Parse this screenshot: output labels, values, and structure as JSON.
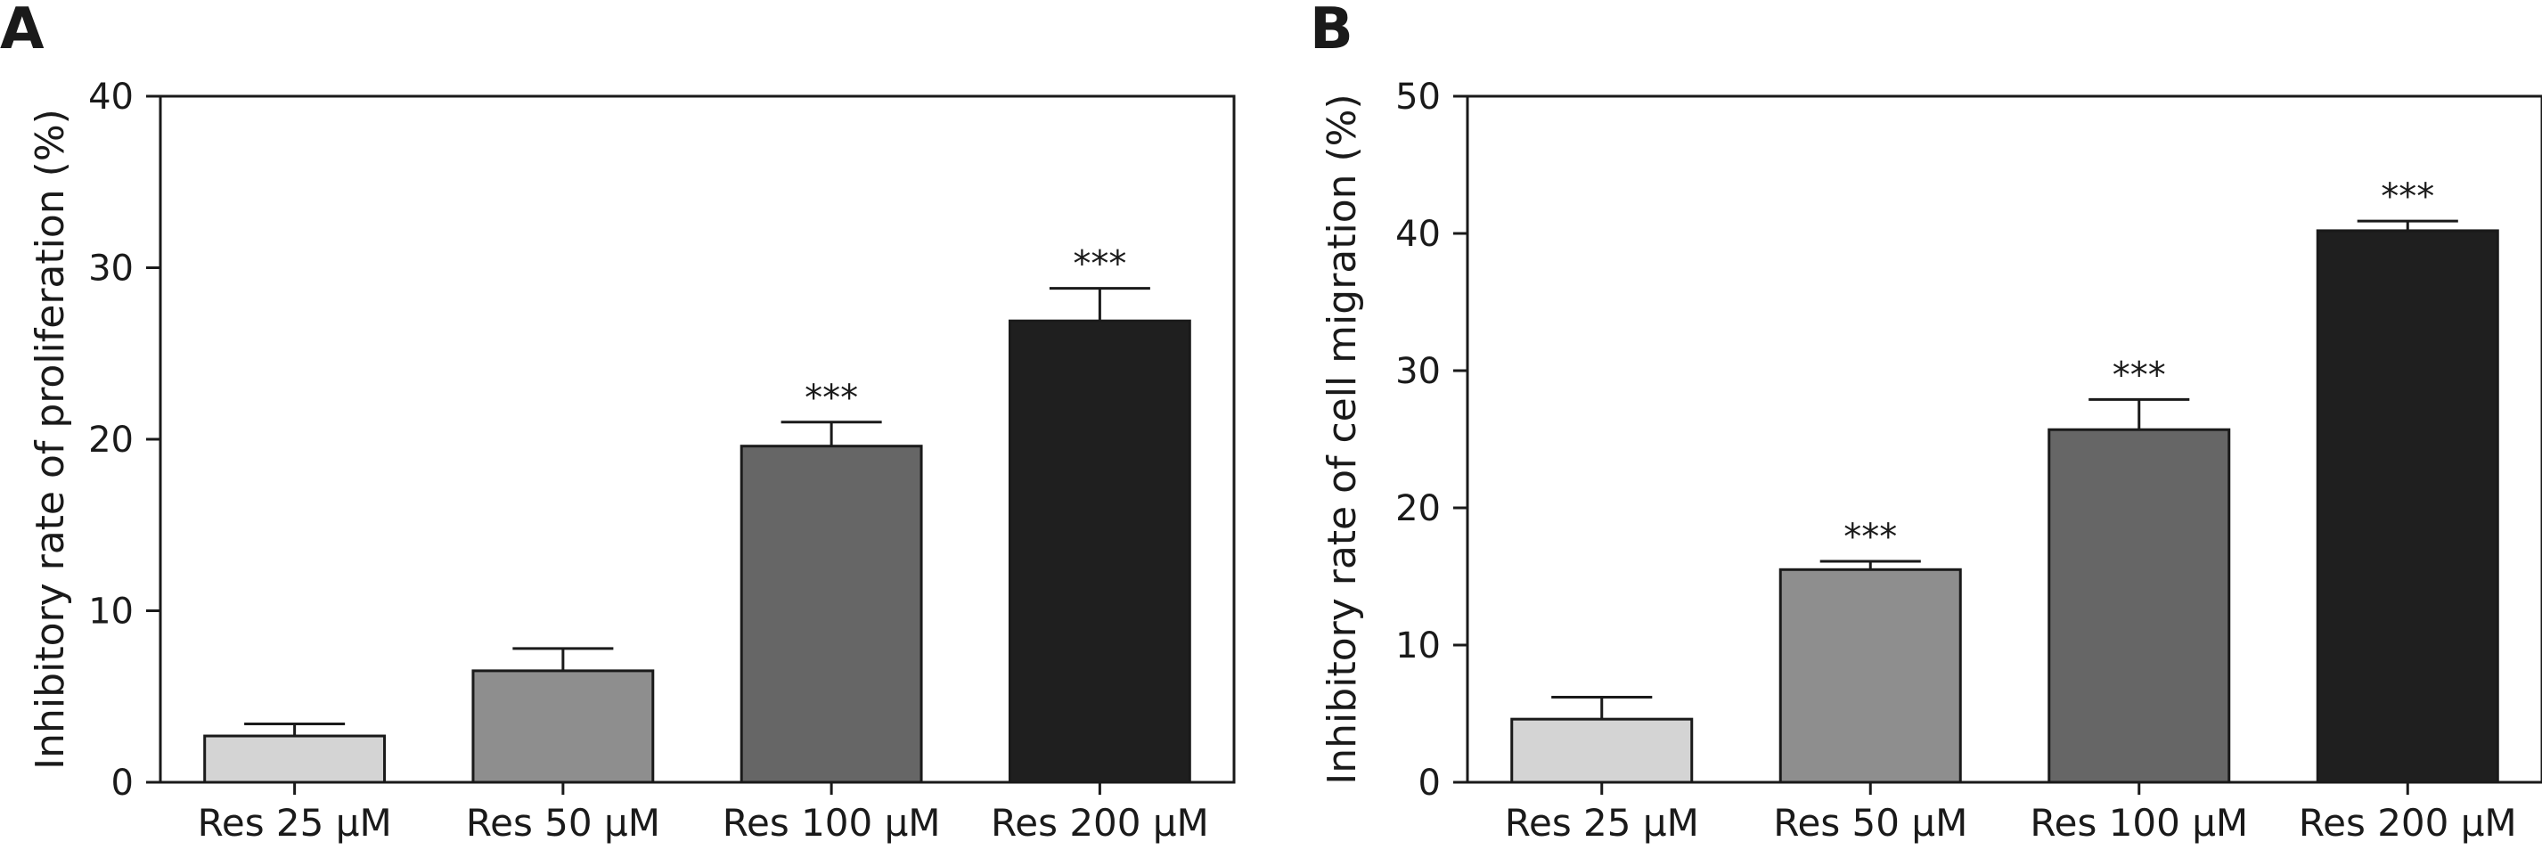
{
  "chart_data": [
    {
      "type": "bar",
      "panel_label": "A",
      "categories": [
        "Res 25 μM",
        "Res 50 μM",
        "Res 100 μM",
        "Res 200 μM"
      ],
      "values": [
        2.7,
        6.5,
        19.6,
        26.9
      ],
      "errors": [
        0.7,
        1.3,
        1.4,
        1.9
      ],
      "significance": [
        "",
        "",
        "***",
        "***"
      ],
      "colors": [
        "#d4d4d4",
        "#8e8e8e",
        "#666666",
        "#1f1f1f"
      ],
      "title": "",
      "xlabel": "",
      "ylabel": "Inhibitory rate of proliferation (%)",
      "ylim": [
        0,
        40
      ],
      "yticks": [
        0,
        10,
        20,
        30,
        40
      ],
      "grid": false
    },
    {
      "type": "bar",
      "panel_label": "B",
      "categories": [
        "Res 25 μM",
        "Res 50 μM",
        "Res 100 μM",
        "Res 200 μM"
      ],
      "values": [
        4.6,
        15.5,
        25.7,
        40.2
      ],
      "errors": [
        1.6,
        0.6,
        2.2,
        0.7
      ],
      "significance": [
        "",
        "***",
        "***",
        "***"
      ],
      "colors": [
        "#d4d4d4",
        "#8e8e8e",
        "#666666",
        "#1f1f1f"
      ],
      "title": "",
      "xlabel": "",
      "ylabel": "Inhibitory rate of cell migration (%)",
      "ylim": [
        0,
        50
      ],
      "yticks": [
        0,
        10,
        20,
        30,
        40,
        50
      ],
      "grid": false
    }
  ]
}
